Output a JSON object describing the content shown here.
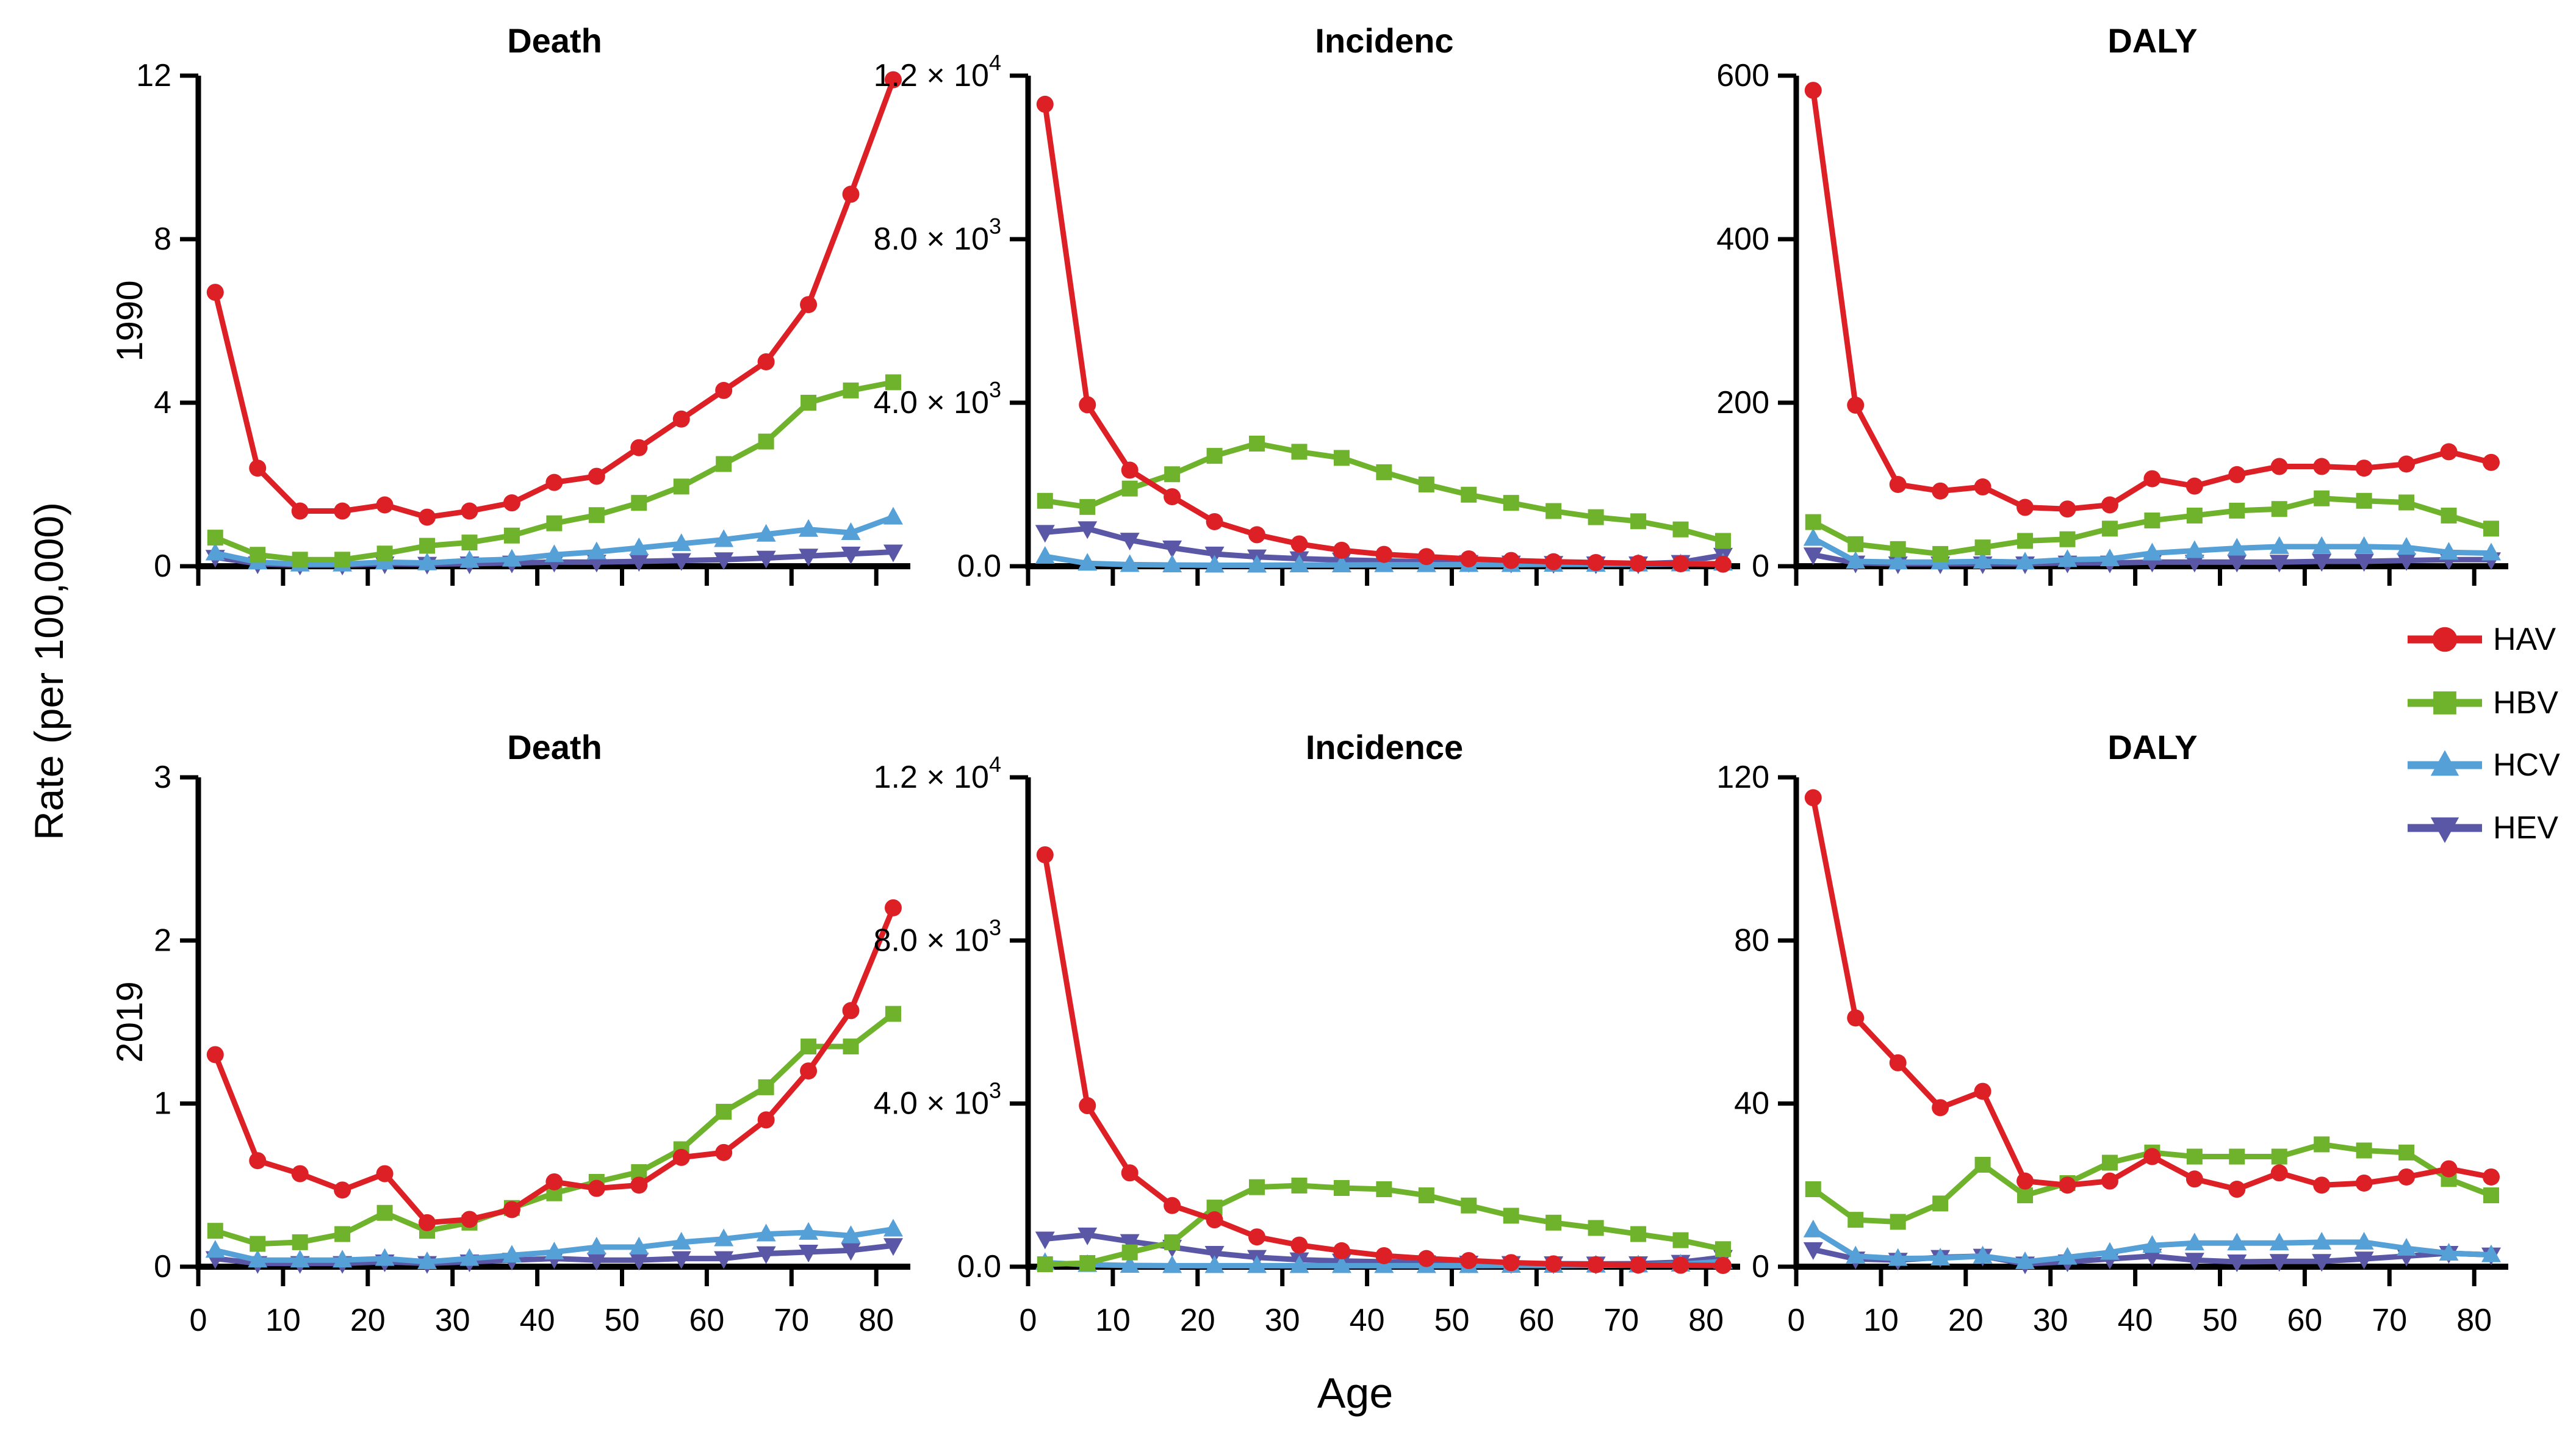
{
  "figure": {
    "x_label": "Age",
    "y_label": "Rate (per 100,000)",
    "row_labels": [
      "1990",
      "2019"
    ],
    "x_tick_labels": [
      "0",
      "10",
      "20",
      "30",
      "40",
      "50",
      "60",
      "70",
      "80"
    ]
  },
  "legend": {
    "items": [
      {
        "label": "HAV",
        "color": "#dd2025",
        "marker": "circle"
      },
      {
        "label": "HBV",
        "color": "#6fb32c",
        "marker": "square"
      },
      {
        "label": "HCV",
        "color": "#55a0d7",
        "marker": "triangle-up"
      },
      {
        "label": "HEV",
        "color": "#5b57a7",
        "marker": "triangle-down"
      }
    ]
  },
  "chart_data": [
    {
      "id": "death-1990",
      "type": "line",
      "title": "Death",
      "row": "1990",
      "col": 0,
      "x": [
        2,
        7,
        12,
        17,
        22,
        27,
        32,
        37,
        42,
        47,
        52,
        57,
        62,
        67,
        72,
        77,
        82
      ],
      "ylim": [
        0,
        12
      ],
      "show_x_tick_labels": false,
      "yticks": [
        {
          "v": 0,
          "label": "0"
        },
        {
          "v": 4,
          "label": "4"
        },
        {
          "v": 8,
          "label": "8"
        },
        {
          "v": 12,
          "label": "12"
        }
      ],
      "series": [
        {
          "name": "HAV",
          "values": [
            6.7,
            2.4,
            1.35,
            1.35,
            1.5,
            1.2,
            1.35,
            1.55,
            2.05,
            2.2,
            2.9,
            3.6,
            4.3,
            5.0,
            6.4,
            9.1,
            11.9
          ]
        },
        {
          "name": "HBV",
          "values": [
            0.7,
            0.28,
            0.16,
            0.16,
            0.31,
            0.5,
            0.58,
            0.75,
            1.05,
            1.25,
            1.55,
            1.95,
            2.5,
            3.05,
            4.0,
            4.3,
            4.5
          ]
        },
        {
          "name": "HCV",
          "values": [
            0.32,
            0.1,
            0.05,
            0.05,
            0.1,
            0.08,
            0.14,
            0.17,
            0.28,
            0.35,
            0.45,
            0.55,
            0.65,
            0.78,
            0.9,
            0.82,
            1.2
          ]
        },
        {
          "name": "HEV",
          "values": [
            0.22,
            0.06,
            0.03,
            0.03,
            0.06,
            0.05,
            0.06,
            0.08,
            0.1,
            0.1,
            0.12,
            0.14,
            0.16,
            0.2,
            0.25,
            0.3,
            0.35
          ]
        }
      ]
    },
    {
      "id": "incidence-1990",
      "type": "line",
      "title": "Incidenc",
      "row": "1990",
      "col": 1,
      "x": [
        2,
        7,
        12,
        17,
        22,
        27,
        32,
        37,
        42,
        47,
        52,
        57,
        62,
        67,
        72,
        77,
        82
      ],
      "ylim": [
        0,
        12000
      ],
      "show_x_tick_labels": false,
      "yticks": [
        {
          "v": 0,
          "label": "0.0"
        },
        {
          "v": 4000,
          "label": "4.0 × 10^3"
        },
        {
          "v": 8000,
          "label": "8.0 × 10^3"
        },
        {
          "v": 12000,
          "label": "1.2 × 10^4"
        }
      ],
      "series": [
        {
          "name": "HAV",
          "values": [
            11300,
            3950,
            2350,
            1700,
            1090,
            770,
            545,
            390,
            290,
            236,
            180,
            140,
            110,
            90,
            70,
            60,
            50
          ]
        },
        {
          "name": "HBV",
          "values": [
            1600,
            1450,
            1900,
            2250,
            2700,
            3000,
            2800,
            2650,
            2300,
            2000,
            1750,
            1550,
            1350,
            1200,
            1100,
            900,
            620
          ]
        },
        {
          "name": "HCV",
          "values": [
            240,
            70,
            40,
            30,
            25,
            25,
            30,
            30,
            35,
            35,
            40,
            40,
            45,
            45,
            50,
            55,
            70
          ]
        },
        {
          "name": "HEV",
          "values": [
            830,
            920,
            640,
            450,
            300,
            230,
            185,
            155,
            130,
            110,
            95,
            80,
            70,
            60,
            60,
            95,
            270
          ]
        }
      ]
    },
    {
      "id": "daly-1990",
      "type": "line",
      "title": "DALY",
      "row": "1990",
      "col": 2,
      "x": [
        2,
        7,
        12,
        17,
        22,
        27,
        32,
        37,
        42,
        47,
        52,
        57,
        62,
        67,
        72,
        77,
        82
      ],
      "ylim": [
        0,
        600
      ],
      "show_x_tick_labels": false,
      "yticks": [
        {
          "v": 0,
          "label": "0"
        },
        {
          "v": 200,
          "label": "200"
        },
        {
          "v": 400,
          "label": "400"
        },
        {
          "v": 600,
          "label": "600"
        }
      ],
      "series": [
        {
          "name": "HAV",
          "values": [
            582,
            197,
            100,
            92,
            97,
            72,
            70,
            75,
            107,
            98,
            112,
            122,
            122,
            120,
            125,
            140,
            127
          ]
        },
        {
          "name": "HBV",
          "values": [
            54,
            27,
            21,
            15,
            23,
            31,
            33,
            46,
            56,
            62,
            68,
            70,
            83,
            80,
            78,
            62,
            46
          ]
        },
        {
          "name": "HCV",
          "values": [
            34,
            6,
            5,
            5,
            6,
            5,
            8,
            9,
            16,
            19,
            22,
            24,
            24,
            24,
            23,
            17,
            16
          ]
        },
        {
          "name": "HEV",
          "values": [
            14,
            4,
            3,
            3,
            3,
            3,
            4,
            4,
            5,
            5,
            5,
            5,
            6,
            6,
            7,
            8,
            8
          ]
        }
      ]
    },
    {
      "id": "death-2019",
      "type": "line",
      "title": "Death",
      "row": "2019",
      "col": 0,
      "x": [
        2,
        7,
        12,
        17,
        22,
        27,
        32,
        37,
        42,
        47,
        52,
        57,
        62,
        67,
        72,
        77,
        82
      ],
      "ylim": [
        0,
        3
      ],
      "show_x_tick_labels": true,
      "yticks": [
        {
          "v": 0,
          "label": "0"
        },
        {
          "v": 1,
          "label": "1"
        },
        {
          "v": 2,
          "label": "2"
        },
        {
          "v": 3,
          "label": "3"
        }
      ],
      "series": [
        {
          "name": "HAV",
          "values": [
            1.3,
            0.65,
            0.57,
            0.47,
            0.57,
            0.27,
            0.29,
            0.35,
            0.52,
            0.48,
            0.5,
            0.67,
            0.7,
            0.9,
            1.2,
            1.57,
            2.2
          ]
        },
        {
          "name": "HBV",
          "values": [
            0.22,
            0.14,
            0.15,
            0.2,
            0.33,
            0.22,
            0.27,
            0.36,
            0.45,
            0.52,
            0.58,
            0.72,
            0.95,
            1.1,
            1.35,
            1.35,
            1.55
          ]
        },
        {
          "name": "HCV",
          "values": [
            0.1,
            0.04,
            0.04,
            0.04,
            0.05,
            0.03,
            0.05,
            0.07,
            0.09,
            0.12,
            0.12,
            0.15,
            0.17,
            0.2,
            0.21,
            0.19,
            0.23
          ]
        },
        {
          "name": "HEV",
          "values": [
            0.05,
            0.02,
            0.02,
            0.02,
            0.03,
            0.02,
            0.03,
            0.04,
            0.05,
            0.04,
            0.04,
            0.05,
            0.05,
            0.08,
            0.09,
            0.1,
            0.13
          ]
        }
      ]
    },
    {
      "id": "incidence-2019",
      "type": "line",
      "title": "Incidence",
      "row": "2019",
      "col": 1,
      "x": [
        2,
        7,
        12,
        17,
        22,
        27,
        32,
        37,
        42,
        47,
        52,
        57,
        62,
        67,
        72,
        77,
        82
      ],
      "ylim": [
        0,
        12000
      ],
      "show_x_tick_labels": true,
      "yticks": [
        {
          "v": 0,
          "label": "0.0"
        },
        {
          "v": 4000,
          "label": "4.0 × 10^3"
        },
        {
          "v": 8000,
          "label": "8.0 × 10^3"
        },
        {
          "v": 12000,
          "label": "1.2 × 10^4"
        }
      ],
      "series": [
        {
          "name": "HAV",
          "values": [
            10100,
            3950,
            2300,
            1500,
            1150,
            730,
            530,
            390,
            270,
            200,
            150,
            100,
            70,
            50,
            40,
            35,
            30
          ]
        },
        {
          "name": "HBV",
          "values": [
            60,
            90,
            350,
            600,
            1450,
            1950,
            1990,
            1930,
            1900,
            1750,
            1500,
            1250,
            1080,
            950,
            800,
            650,
            430
          ]
        },
        {
          "name": "HCV",
          "values": [
            100,
            50,
            30,
            25,
            25,
            25,
            25,
            25,
            25,
            25,
            25,
            30,
            30,
            35,
            40,
            60,
            130
          ]
        },
        {
          "name": "HEV",
          "values": [
            680,
            780,
            620,
            480,
            330,
            230,
            170,
            140,
            120,
            100,
            90,
            80,
            75,
            70,
            75,
            110,
            230
          ]
        }
      ]
    },
    {
      "id": "daly-2019",
      "type": "line",
      "title": "DALY",
      "row": "2019",
      "col": 2,
      "x": [
        2,
        7,
        12,
        17,
        22,
        27,
        32,
        37,
        42,
        47,
        52,
        57,
        62,
        67,
        72,
        77,
        82
      ],
      "ylim": [
        0,
        120
      ],
      "show_x_tick_labels": true,
      "yticks": [
        {
          "v": 0,
          "label": "0"
        },
        {
          "v": 40,
          "label": "40"
        },
        {
          "v": 80,
          "label": "80"
        },
        {
          "v": 120,
          "label": "120"
        }
      ],
      "series": [
        {
          "name": "HAV",
          "values": [
            115,
            61,
            50,
            39,
            43,
            21,
            20,
            21,
            27,
            21.5,
            19,
            23,
            20,
            20.5,
            22,
            24,
            22
          ]
        },
        {
          "name": "HBV",
          "values": [
            19,
            11.5,
            11,
            15.5,
            25,
            17.5,
            20.5,
            25.5,
            28,
            27,
            27,
            27,
            30,
            28.5,
            28,
            21.5,
            17.5
          ]
        },
        {
          "name": "HCV",
          "values": [
            9,
            2.6,
            2,
            2.1,
            2.6,
            1.2,
            2.3,
            3.5,
            5.2,
            5.8,
            5.8,
            5.8,
            6,
            6,
            4.5,
            3.3,
            2.9
          ]
        },
        {
          "name": "HEV",
          "values": [
            4.2,
            1.9,
            1.6,
            2.3,
            2.6,
            0.7,
            1.2,
            1.9,
            2.6,
            1.6,
            1.2,
            1.3,
            1.3,
            1.9,
            2.6,
            3.3,
            2.9
          ]
        }
      ]
    }
  ]
}
